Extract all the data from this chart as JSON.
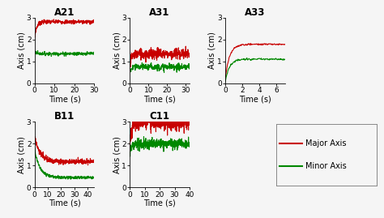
{
  "panels": [
    {
      "title": "A21",
      "xlim": [
        0,
        30
      ],
      "ylim": [
        0,
        3
      ],
      "xticks": [
        0,
        10,
        20,
        30
      ],
      "yticks": [
        0,
        1,
        2,
        3
      ],
      "major_y0": 2.05,
      "major_y1": 2.8,
      "major_settle": 2.72,
      "major_noise": 0.05,
      "minor_y0": 1.45,
      "minor_y1": 1.35,
      "minor_noise": 0.04,
      "rise_t": 3,
      "n_points": 300,
      "decay": false
    },
    {
      "title": "A31",
      "xlim": [
        0,
        32
      ],
      "ylim": [
        0,
        3
      ],
      "xticks": [
        0,
        10,
        20,
        30
      ],
      "yticks": [
        0,
        1,
        2,
        3
      ],
      "major_y0": 0.9,
      "major_y1": 1.35,
      "major_settle": 1.5,
      "major_noise": 0.13,
      "minor_y0": 0.5,
      "minor_y1": 0.75,
      "minor_noise": 0.08,
      "rise_t": 3,
      "n_points": 320,
      "decay": false
    },
    {
      "title": "A33",
      "xlim": [
        0,
        7
      ],
      "ylim": [
        0,
        3
      ],
      "xticks": [
        0,
        2,
        4,
        6
      ],
      "yticks": [
        0,
        1,
        2,
        3
      ],
      "major_y0": 0.2,
      "major_y1": 1.78,
      "major_settle": 1.75,
      "major_noise": 0.02,
      "minor_y0": 0.1,
      "minor_y1": 1.1,
      "minor_noise": 0.02,
      "rise_t": 1.5,
      "n_points": 140,
      "decay": false
    },
    {
      "title": "B11",
      "xlim": [
        0,
        45
      ],
      "ylim": [
        0,
        3
      ],
      "xticks": [
        0,
        10,
        20,
        30,
        40
      ],
      "yticks": [
        0,
        1,
        2,
        3
      ],
      "major_y0": 2.35,
      "major_y1": 1.18,
      "major_settle": 1.18,
      "major_noise": 0.055,
      "minor_y0": 1.75,
      "minor_y1": 0.45,
      "minor_noise": 0.03,
      "rise_t": 12,
      "n_points": 450,
      "decay": true
    },
    {
      "title": "C11",
      "xlim": [
        0,
        40
      ],
      "ylim": [
        0,
        3
      ],
      "xticks": [
        0,
        10,
        20,
        30,
        40
      ],
      "yticks": [
        0,
        1,
        2,
        3
      ],
      "major_y0": 1.85,
      "major_y1": 2.95,
      "major_settle": 2.95,
      "major_noise": 0.18,
      "minor_y0": 1.6,
      "minor_y1": 2.0,
      "minor_noise": 0.12,
      "rise_t": 4,
      "n_points": 400,
      "decay": false
    }
  ],
  "red_color": "#c80000",
  "green_color": "#008800",
  "xlabel": "Time (s)",
  "ylabel": "Axis (cm)",
  "legend_labels": [
    "Major Axis",
    "Minor Axis"
  ],
  "bg_color": "#f5f5f5",
  "title_fontsize": 8.5,
  "label_fontsize": 7,
  "tick_fontsize": 6.5,
  "linewidth": 0.8
}
